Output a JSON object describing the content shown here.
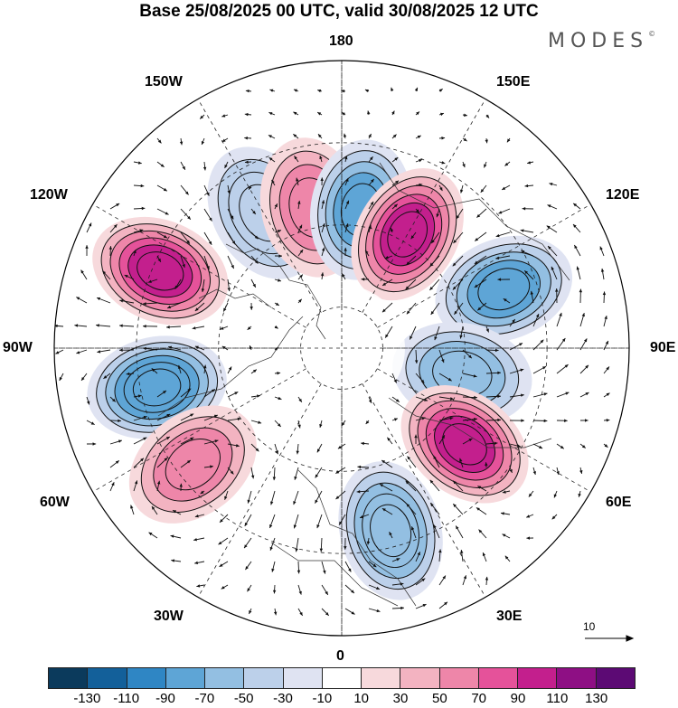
{
  "title": "Base 25/08/2025 00 UTC, valid 30/08/2025 12 UTC",
  "brand": "MODES",
  "brand_mark": "©",
  "longitude_labels": {
    "top": "180",
    "bottom": "0",
    "left": "90W",
    "right": "90E",
    "w150": "150W",
    "w120": "120W",
    "w60": "60W",
    "w30": "30W",
    "e150": "150E",
    "e120": "120E",
    "e60": "60E",
    "e30": "30E"
  },
  "reference_vector": "10",
  "colorbar": {
    "colors": [
      "#0b3a5c",
      "#13609a",
      "#2f86c4",
      "#5ea5d6",
      "#93bfe2",
      "#bcd0ea",
      "#dfe3f2",
      "#ffffff",
      "#f7d9dc",
      "#f3b3c1",
      "#ee86a9",
      "#e5529a",
      "#c31f8d",
      "#8e0f84",
      "#5c0a74"
    ],
    "ticks": [
      "-130",
      "-110",
      "-90",
      "-70",
      "-50",
      "-30",
      "-10",
      "10",
      "30",
      "50",
      "70",
      "90",
      "110",
      "130"
    ]
  },
  "anomalies": [
    {
      "name": "low-150w",
      "lon": -150,
      "lat": 52,
      "value": -50
    },
    {
      "name": "high-165w",
      "lon": -168,
      "lat": 55,
      "value": 50
    },
    {
      "name": "low-170e",
      "lon": 172,
      "lat": 56,
      "value": -80
    },
    {
      "name": "high-150e",
      "lon": 150,
      "lat": 58,
      "value": 90
    },
    {
      "name": "low-120e",
      "lon": 110,
      "lat": 48,
      "value": -80
    },
    {
      "name": "high-110w",
      "lon": -113,
      "lat": 42,
      "value": 90
    },
    {
      "name": "low-80w",
      "lon": -78,
      "lat": 44,
      "value": -90
    },
    {
      "name": "low-80e",
      "lon": 78,
      "lat": 60,
      "value": -60
    },
    {
      "name": "high-60w",
      "lon": -52,
      "lat": 44,
      "value": 50
    },
    {
      "name": "high-55e",
      "lon": 52,
      "lat": 52,
      "value": 90
    },
    {
      "name": "low-15e",
      "lon": 15,
      "lat": 44,
      "value": -70
    }
  ]
}
